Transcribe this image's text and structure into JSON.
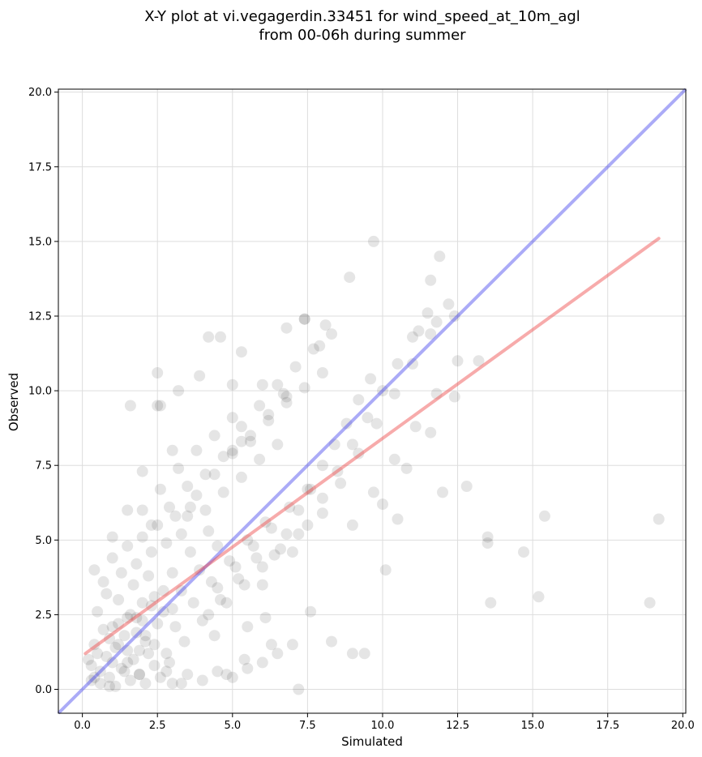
{
  "chart_data": {
    "type": "scatter",
    "title_line1": "X-Y plot at vi.vegagerdin.33451 for wind_speed_at_10m_agl",
    "title_line2": "from 00-06h during summer",
    "xlabel": "Simulated",
    "ylabel": "Observed",
    "xlim": [
      -0.8,
      20.1
    ],
    "ylim": [
      -0.8,
      20.1
    ],
    "xticks": [
      0.0,
      2.5,
      5.0,
      7.5,
      10.0,
      12.5,
      15.0,
      17.5,
      20.0
    ],
    "yticks": [
      0.0,
      2.5,
      5.0,
      7.5,
      10.0,
      12.5,
      15.0,
      17.5,
      20.0
    ],
    "xtick_labels": [
      "0.0",
      "2.5",
      "5.0",
      "7.5",
      "10.0",
      "12.5",
      "15.0",
      "17.5",
      "20.0"
    ],
    "ytick_labels": [
      "0.0",
      "2.5",
      "5.0",
      "7.5",
      "10.0",
      "12.5",
      "15.0",
      "17.5",
      "20.0"
    ],
    "grid": true,
    "colors": {
      "points": "#000000",
      "identity_line": "#4444ee",
      "fit_line": "#ee4444",
      "grid": "#dddddd"
    },
    "identity_line": {
      "x": [
        -0.8,
        20.1
      ],
      "y": [
        -0.8,
        20.1
      ]
    },
    "fit_line": {
      "x": [
        0.1,
        19.2
      ],
      "y": [
        1.2,
        15.1
      ]
    },
    "points": {
      "x": [
        0.2,
        0.3,
        0.4,
        0.5,
        0.6,
        0.7,
        0.8,
        0.9,
        1.0,
        1.1,
        1.2,
        1.3,
        1.4,
        1.5,
        1.6,
        1.7,
        1.8,
        1.9,
        2.0,
        2.1,
        2.2,
        2.3,
        2.4,
        0.5,
        0.8,
        1.0,
        1.2,
        1.5,
        1.7,
        2.0,
        2.2,
        2.5,
        2.7,
        3.0,
        0.3,
        0.6,
        0.9,
        1.1,
        1.4,
        1.6,
        1.9,
        2.1,
        2.4,
        2.6,
        2.9,
        0.4,
        0.7,
        1.0,
        1.3,
        1.5,
        1.8,
        2.0,
        2.3,
        2.5,
        2.8,
        3.1,
        3.3,
        3.6,
        1.2,
        1.5,
        1.8,
        2.1,
        2.4,
        2.7,
        3.0,
        3.3,
        3.6,
        3.9,
        4.2,
        4.5,
        2.0,
        2.3,
        2.6,
        2.9,
        3.2,
        3.5,
        3.8,
        4.1,
        4.4,
        4.7,
        5.0,
        5.3,
        2.8,
        3.1,
        3.4,
        3.7,
        4.0,
        4.3,
        4.6,
        4.9,
        5.2,
        5.5,
        5.8,
        6.1,
        3.5,
        3.8,
        4.1,
        4.4,
        4.7,
        5.0,
        5.3,
        5.6,
        5.9,
        6.2,
        6.5,
        6.8,
        4.2,
        4.5,
        4.8,
        5.1,
        5.4,
        5.7,
        6.0,
        6.3,
        6.6,
        6.9,
        7.2,
        7.5,
        5.0,
        5.3,
        5.6,
        5.9,
        6.2,
        6.5,
        6.8,
        7.1,
        7.4,
        7.7,
        8.0,
        8.3,
        6.0,
        6.4,
        6.8,
        7.2,
        7.6,
        8.0,
        8.4,
        8.8,
        9.2,
        9.6,
        7.0,
        7.5,
        8.0,
        8.5,
        9.0,
        9.5,
        10.0,
        10.5,
        11.0,
        11.5,
        8.0,
        8.6,
        9.2,
        9.8,
        10.4,
        11.0,
        11.6,
        12.2,
        9.0,
        9.7,
        10.4,
        11.1,
        11.8,
        12.5,
        10.0,
        10.8,
        11.6,
        12.4,
        13.2,
        3.0,
        3.5,
        4.0,
        4.5,
        5.0,
        5.5,
        6.0,
        6.5,
        7.0,
        2.5,
        3.2,
        3.9,
        4.6,
        5.3,
        6.0,
        6.7,
        7.4,
        8.1,
        1.0,
        1.5,
        2.0,
        2.5,
        3.0,
        1.6,
        2.6,
        4.2,
        5.0,
        6.8,
        7.4,
        7.9,
        8.9,
        9.7,
        9.0,
        10.1,
        10.5,
        11.2,
        11.6,
        11.9,
        13.5,
        14.7,
        15.4,
        18.9,
        19.2,
        15.2,
        13.5,
        13.6,
        12.8,
        12.4,
        11.8,
        12.0,
        8.3,
        9.4,
        4.4,
        5.4,
        6.3,
        7.6,
        5.5,
        4.8,
        6.1,
        7.2,
        3.3,
        2.8,
        1.9,
        0.9,
        0.4
      ],
      "y": [
        1.0,
        0.8,
        1.5,
        1.2,
        0.6,
        2.0,
        1.1,
        1.7,
        0.9,
        1.4,
        2.2,
        0.7,
        1.8,
        1.3,
        2.5,
        1.0,
        1.9,
        0.5,
        2.3,
        1.6,
        1.2,
        2.8,
        1.5,
        2.6,
        3.2,
        2.1,
        3.0,
        2.4,
        3.5,
        2.9,
        3.8,
        2.2,
        3.3,
        2.7,
        0.3,
        0.2,
        0.4,
        0.1,
        0.6,
        0.3,
        0.5,
        0.2,
        0.8,
        0.4,
        0.9,
        4.0,
        3.6,
        4.4,
        3.9,
        4.8,
        4.2,
        5.1,
        4.6,
        5.5,
        4.9,
        5.8,
        5.2,
        6.1,
        1.5,
        0.9,
        2.4,
        1.8,
        3.1,
        2.6,
        3.9,
        3.3,
        4.6,
        4.0,
        5.3,
        4.8,
        6.0,
        5.5,
        6.7,
        6.1,
        7.4,
        6.8,
        8.0,
        7.2,
        8.5,
        7.8,
        9.1,
        8.3,
        1.2,
        2.1,
        1.6,
        2.9,
        2.3,
        3.6,
        3.0,
        4.3,
        3.7,
        5.0,
        4.4,
        5.6,
        5.8,
        6.5,
        6.0,
        7.2,
        6.6,
        7.9,
        7.1,
        8.5,
        7.7,
        9.2,
        8.2,
        9.8,
        2.5,
        3.4,
        2.9,
        4.1,
        3.5,
        4.8,
        4.1,
        5.4,
        4.7,
        6.1,
        5.2,
        6.7,
        8.0,
        8.8,
        8.3,
        9.5,
        9.0,
        10.2,
        9.6,
        10.8,
        10.1,
        11.4,
        10.6,
        11.9,
        3.5,
        4.5,
        5.2,
        6.0,
        6.7,
        7.5,
        8.2,
        8.9,
        9.7,
        10.4,
        4.6,
        5.5,
        6.4,
        7.3,
        8.2,
        9.1,
        10.0,
        10.9,
        11.8,
        12.6,
        5.9,
        6.9,
        7.9,
        8.9,
        9.9,
        10.9,
        11.9,
        12.9,
        5.5,
        6.6,
        7.7,
        8.8,
        9.9,
        11.0,
        6.2,
        7.4,
        8.6,
        9.8,
        11.0,
        0.2,
        0.5,
        0.3,
        0.6,
        0.4,
        0.7,
        0.9,
        1.2,
        1.5,
        9.5,
        10.0,
        10.5,
        11.8,
        11.3,
        10.2,
        9.9,
        12.4,
        12.2,
        5.1,
        6.0,
        7.3,
        10.6,
        8.0,
        9.5,
        9.5,
        11.8,
        10.2,
        12.1,
        12.4,
        11.5,
        13.8,
        15.0,
        1.2,
        4.0,
        5.7,
        12.0,
        13.7,
        14.5,
        5.1,
        4.6,
        5.8,
        2.9,
        5.7,
        3.1,
        4.9,
        2.9,
        6.8,
        12.5,
        12.3,
        6.6,
        1.6,
        1.2,
        1.8,
        1.0,
        1.5,
        2.6,
        2.1,
        0.5,
        2.4,
        0.0,
        0.2,
        0.6,
        1.3,
        0.1,
        0.4
      ]
    }
  }
}
